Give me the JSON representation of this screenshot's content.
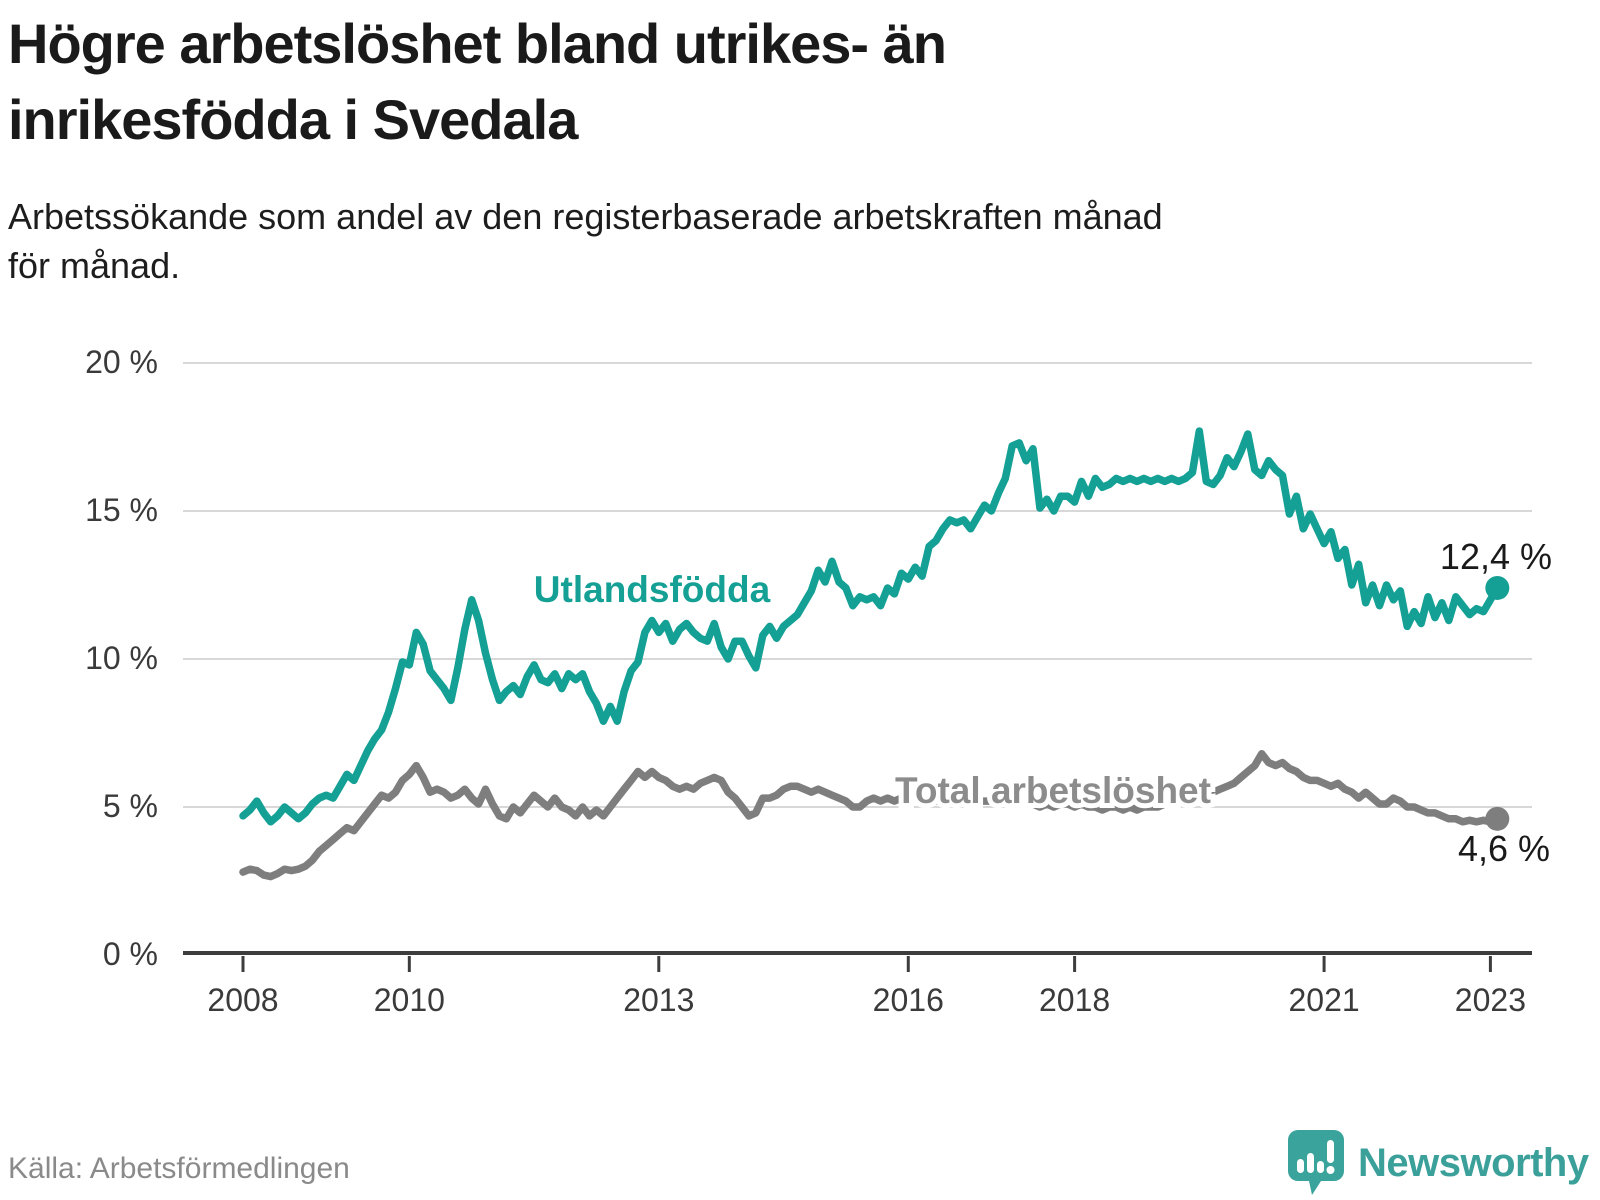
{
  "title": {
    "lines": [
      "Högre arbetslöshet bland utrikes- än",
      "inrikesfödda i Svedala"
    ]
  },
  "subtitle": {
    "lines": [
      "Arbetssökande som andel av den registerbaserade arbetskraften månad",
      "för månad."
    ]
  },
  "annotations": {
    "latest_foreign": "12,4 %",
    "latest_total": "4,6 %"
  },
  "footer": {
    "source": "Källa: Arbetsförmedlingen",
    "logo_text": "Newsworthy",
    "logo_icon": "newsworthy-speech-bubble-bars-icon",
    "logo_color": "#3ba09a"
  },
  "chart_data": {
    "type": "line",
    "frequency": "monthly",
    "x_start": "2008-01",
    "x_end": "2023-02",
    "x_tick_years": [
      "2008",
      "2010",
      "2013",
      "2016",
      "2018",
      "2021",
      "2023"
    ],
    "y_ticks": [
      {
        "label": "0 %",
        "value": 0
      },
      {
        "label": "5 %",
        "value": 5
      },
      {
        "label": "10 %",
        "value": 10
      },
      {
        "label": "15 %",
        "value": 15
      },
      {
        "label": "20 %",
        "value": 20
      }
    ],
    "ylim": [
      0,
      20
    ],
    "grid": "horizontal",
    "legend": "inline-labels",
    "series": [
      {
        "name": "Utlandsfödda",
        "color": "#14a094",
        "values": [
          4.7,
          4.9,
          5.2,
          4.8,
          4.5,
          4.7,
          5.0,
          4.8,
          4.6,
          4.8,
          5.1,
          5.3,
          5.4,
          5.3,
          5.7,
          6.1,
          5.9,
          6.4,
          6.9,
          7.3,
          7.6,
          8.2,
          9.0,
          9.9,
          9.8,
          10.9,
          10.5,
          9.6,
          9.3,
          9.0,
          8.6,
          9.7,
          11.0,
          12.0,
          11.3,
          10.2,
          9.3,
          8.6,
          8.9,
          9.1,
          8.8,
          9.4,
          9.8,
          9.3,
          9.2,
          9.5,
          9.0,
          9.5,
          9.3,
          9.5,
          8.9,
          8.5,
          7.9,
          8.4,
          7.9,
          8.9,
          9.6,
          9.9,
          10.9,
          11.3,
          10.9,
          11.2,
          10.6,
          11.0,
          11.2,
          10.9,
          10.7,
          10.6,
          11.2,
          10.4,
          10.0,
          10.6,
          10.6,
          10.1,
          9.7,
          10.8,
          11.1,
          10.7,
          11.1,
          11.3,
          11.5,
          11.9,
          12.3,
          13.0,
          12.6,
          13.3,
          12.6,
          12.4,
          11.8,
          12.1,
          12.0,
          12.1,
          11.8,
          12.4,
          12.2,
          12.9,
          12.7,
          13.1,
          12.8,
          13.8,
          14.0,
          14.4,
          14.7,
          14.6,
          14.7,
          14.4,
          14.8,
          15.2,
          15.0,
          15.6,
          16.1,
          17.2,
          17.3,
          16.7,
          17.1,
          15.1,
          15.4,
          15.0,
          15.5,
          15.5,
          15.3,
          16.0,
          15.5,
          16.1,
          15.8,
          15.9,
          16.1,
          16.0,
          16.1,
          16.0,
          16.1,
          16.0,
          16.1,
          16.0,
          16.1,
          16.0,
          16.1,
          16.3,
          17.7,
          16.0,
          15.9,
          16.2,
          16.8,
          16.5,
          17.0,
          17.6,
          16.4,
          16.2,
          16.7,
          16.4,
          16.2,
          14.9,
          15.5,
          14.4,
          14.9,
          14.4,
          13.9,
          14.3,
          13.4,
          13.7,
          12.5,
          13.2,
          11.9,
          12.5,
          11.8,
          12.5,
          12.0,
          12.3,
          11.1,
          11.6,
          11.2,
          12.1,
          11.4,
          11.9,
          11.3,
          12.1,
          11.8,
          11.5,
          11.7,
          11.6,
          12.0,
          12.4
        ]
      },
      {
        "name": "Total arbetslöshet",
        "color": "#7e7e7e",
        "values": [
          2.8,
          2.9,
          2.85,
          2.7,
          2.65,
          2.75,
          2.9,
          2.85,
          2.9,
          3.0,
          3.2,
          3.5,
          3.7,
          3.9,
          4.1,
          4.3,
          4.2,
          4.5,
          4.8,
          5.1,
          5.4,
          5.3,
          5.5,
          5.9,
          6.1,
          6.4,
          6.0,
          5.5,
          5.6,
          5.5,
          5.3,
          5.4,
          5.6,
          5.3,
          5.1,
          5.6,
          5.1,
          4.7,
          4.6,
          5.0,
          4.8,
          5.1,
          5.4,
          5.2,
          5.0,
          5.3,
          5.0,
          4.9,
          4.7,
          5.0,
          4.7,
          4.9,
          4.7,
          5.0,
          5.3,
          5.6,
          5.9,
          6.2,
          6.0,
          6.2,
          6.0,
          5.9,
          5.7,
          5.6,
          5.7,
          5.6,
          5.8,
          5.9,
          6.0,
          5.9,
          5.5,
          5.3,
          5.0,
          4.7,
          4.8,
          5.3,
          5.3,
          5.4,
          5.6,
          5.7,
          5.7,
          5.6,
          5.5,
          5.6,
          5.5,
          5.4,
          5.3,
          5.2,
          5.0,
          5.0,
          5.2,
          5.3,
          5.2,
          5.3,
          5.2,
          5.3,
          5.2,
          5.3,
          5.2,
          5.3,
          5.2,
          5.2,
          5.3,
          5.2,
          5.2,
          5.1,
          5.2,
          5.2,
          5.2,
          5.3,
          5.2,
          5.3,
          5.2,
          5.2,
          5.1,
          5.0,
          5.1,
          5.0,
          5.1,
          5.1,
          5.0,
          5.1,
          5.0,
          5.0,
          4.9,
          5.0,
          5.0,
          4.9,
          5.0,
          4.9,
          5.0,
          5.0,
          5.0,
          5.1,
          5.1,
          5.2,
          5.2,
          5.3,
          5.5,
          5.4,
          5.5,
          5.6,
          5.7,
          5.8,
          6.0,
          6.2,
          6.4,
          6.8,
          6.5,
          6.4,
          6.5,
          6.3,
          6.2,
          6.0,
          5.9,
          5.9,
          5.8,
          5.7,
          5.8,
          5.6,
          5.5,
          5.3,
          5.5,
          5.3,
          5.1,
          5.1,
          5.3,
          5.2,
          5.0,
          5.0,
          4.9,
          4.8,
          4.8,
          4.7,
          4.6,
          4.6,
          4.5,
          4.55,
          4.5,
          4.55,
          4.5,
          4.6
        ]
      }
    ]
  }
}
